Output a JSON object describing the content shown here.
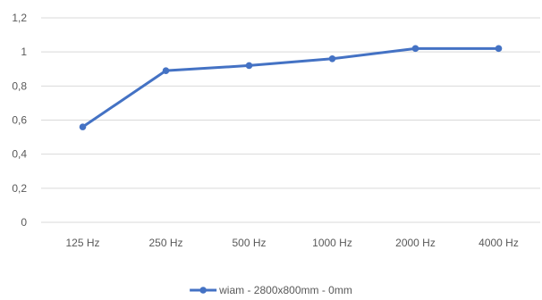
{
  "chart_data": {
    "type": "line",
    "title": "",
    "xlabel": "",
    "ylabel": "",
    "categories": [
      "125 Hz",
      "250 Hz",
      "500 Hz",
      "1000 Hz",
      "2000 Hz",
      "4000 Hz"
    ],
    "series": [
      {
        "name": "wiam - 2800x800mm - 0mm",
        "values": [
          0.56,
          0.89,
          0.92,
          0.96,
          1.02,
          1.02
        ],
        "color": "#4472C4"
      }
    ],
    "ylim": [
      0,
      1.2
    ],
    "yticks": [
      0,
      0.2,
      0.4,
      0.6,
      0.8,
      1,
      1.2
    ],
    "ytick_labels": [
      "0",
      "0,2",
      "0,4",
      "0,6",
      "0,8",
      "1",
      "1,2"
    ],
    "grid": true,
    "grid_color": "#d9d9d9",
    "legend_position": "bottom"
  }
}
